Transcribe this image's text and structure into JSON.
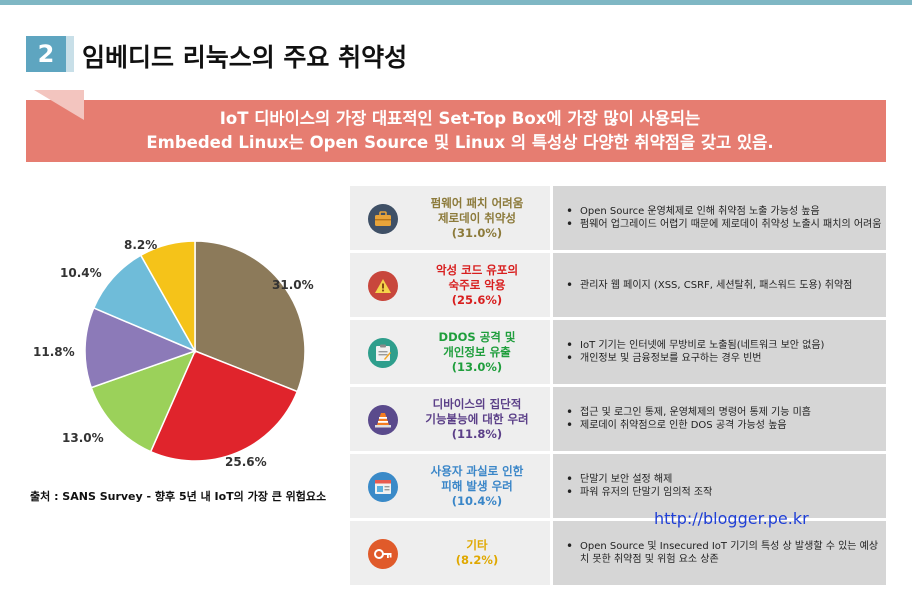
{
  "header": {
    "number": "2",
    "title": "임베디드 리눅스의 주요 취약성"
  },
  "banner": {
    "line1": "IoT 디바이스의 가장 대표적인 Set-Top Box에 가장 많이 사용되는",
    "line2": "Embeded Linux는  Open Source 및 Linux 의 특성상 다양한 취약점을 갖고 있음."
  },
  "chart_data": {
    "type": "pie",
    "title": "",
    "slices": [
      {
        "label": "31.0%",
        "value": 31.0,
        "color": "#8c7a5a"
      },
      {
        "label": "25.6%",
        "value": 25.6,
        "color": "#e0242c"
      },
      {
        "label": "13.0%",
        "value": 13.0,
        "color": "#9bd15a"
      },
      {
        "label": "11.8%",
        "value": 11.8,
        "color": "#8c7ab8"
      },
      {
        "label": "10.4%",
        "value": 10.4,
        "color": "#6fbcd9"
      },
      {
        "label": "8.2%",
        "value": 8.2,
        "color": "#f5c319"
      }
    ]
  },
  "source": "출처 : SANS Survey - 향후 5년 내 IoT의 가장 큰 위험요소",
  "rows": [
    {
      "color": "#8c7a3a",
      "icon": "briefcase-icon",
      "icon_bg": "#3f5066",
      "cat": [
        "펌웨어 패치 어려움",
        "제로데이 취약성",
        "(31.0%)"
      ],
      "points": [
        "Open Source 운영체제로 인해 취약점 노출 가능성 높음",
        "펌웨어 업그레이드 어렵기 때문에 제로데이 취약성 노출시 패치의 어려움"
      ]
    },
    {
      "color": "#d81e1e",
      "icon": "warning-icon",
      "icon_bg": "#c8463c",
      "cat": [
        "악성 코드 유포의",
        "숙주로 악용",
        "(25.6%)"
      ],
      "points": [
        "관리자 웹 페이지 (XSS, CSRF, 세션탈취, 패스워드 도용) 취약점"
      ]
    },
    {
      "color": "#1f9e3c",
      "icon": "clipboard-icon",
      "icon_bg": "#2e9e8c",
      "cat": [
        "DDOS 공격 및",
        "개인정보 유출",
        "(13.0%)"
      ],
      "points": [
        "IoT 기기는 인터넷에 무방비로 노출됨(네트워크 보안 없음)",
        "개인정보 및 금융정보를 요구하는 경우 빈번"
      ]
    },
    {
      "color": "#5b3f88",
      "icon": "cone-icon",
      "icon_bg": "#5a4a8c",
      "cat": [
        "디바이스의 집단적",
        "기능불능에 대한 우려",
        "(11.8%)"
      ],
      "points": [
        "접근 및 로그인 통제, 운영체제의 명령어 통제 기능 미흡",
        "제로데이 취약점으로 인한 DOS 공격 가능성 높음"
      ]
    },
    {
      "color": "#3a86c8",
      "icon": "window-icon",
      "icon_bg": "#3a8ac8",
      "cat": [
        "사용자 과실로 인한",
        "피해 발생 우려",
        "(10.4%)"
      ],
      "points": [
        "단말기 보안 설정 해제",
        "파워 유저의 단말기 임의적 조작"
      ]
    },
    {
      "color": "#e0a800",
      "icon": "key-icon",
      "icon_bg": "#e05a2a",
      "cat": [
        "기타",
        "(8.2%)"
      ],
      "points": [
        "Open Source 및 Insecured IoT 기기의 특성 상 발생할 수 있는 예상치 못한 취약점 및 위험 요소 상존"
      ]
    }
  ],
  "watermark": "http://blogger.pe.kr"
}
